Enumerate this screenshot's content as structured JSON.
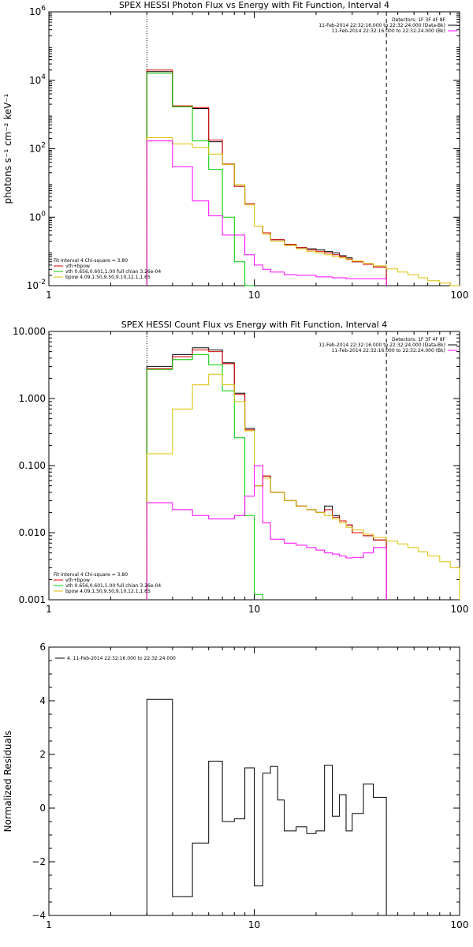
{
  "colors": {
    "total": "#000000",
    "fit": "#e00000",
    "vth": "#00cc00",
    "bpow": "#dcc000",
    "bk": "#ff00ff",
    "axes": "#000000"
  },
  "chart_data": [
    {
      "type": "line",
      "title": "SPEX HESSI Photon Flux vs Energy with Fit Function, Interval 4",
      "xlabel": "",
      "ylabel": "photons s⁻¹ cm⁻² keV⁻¹",
      "xscale": "log",
      "yscale": "log",
      "xlim": [
        1,
        100
      ],
      "ylim": [
        0.01,
        1000000
      ],
      "xticks": [
        {
          "v": 1,
          "label": "1"
        },
        {
          "v": 10,
          "label": "10"
        },
        {
          "v": 100,
          "label": "100"
        }
      ],
      "yticks": [
        {
          "v": 0.01,
          "base": "10",
          "exp": "-2"
        },
        {
          "v": 1,
          "base": "10",
          "exp": "0"
        },
        {
          "v": 100,
          "base": "10",
          "exp": "2"
        },
        {
          "v": 10000,
          "base": "10",
          "exp": "4"
        },
        {
          "v": 1000000,
          "base": "10",
          "exp": "6"
        }
      ],
      "vlines": [
        {
          "x": 3.0,
          "style": "dotted"
        },
        {
          "x": 44.0,
          "style": "dashed"
        }
      ],
      "legend_topright": [
        {
          "text": "Detectors: 1F 3F 4F 8F",
          "color": ""
        },
        {
          "text": "11-Feb-2014 22:32:16.000 to 22:32:24.000 (Data-Bk)",
          "color": "#000000"
        },
        {
          "text": "11-Feb-2014 22:32:16.000 to 22:32:24.000 (Bk)",
          "color": "#ff00ff"
        }
      ],
      "legend_bottomleft": [
        {
          "text": "Fit Interval 4   Chi-square = 3.80",
          "color": ""
        },
        {
          "text": "vth+bpow",
          "color": "#e00000"
        },
        {
          "text": "vth 0.656,0.601,1.00  full chian 3.26e-04",
          "color": "#00cc00"
        },
        {
          "text": "bpow 4.09,1.50,9.50,9.10,12.1,1.65",
          "color": "#dcc000"
        }
      ],
      "series": [
        {
          "key": "total",
          "edges": [
            3,
            4,
            5,
            6,
            7,
            8,
            9,
            10,
            11,
            12,
            14,
            16,
            18,
            20,
            22,
            24,
            26,
            28,
            30,
            34,
            38,
            44
          ],
          "values": [
            18000,
            1700,
            1500,
            160,
            35,
            8,
            2.5,
            0.55,
            0.35,
            0.22,
            0.16,
            0.13,
            0.12,
            0.11,
            0.1,
            0.09,
            0.075,
            0.065,
            0.05,
            0.042,
            0.035
          ]
        },
        {
          "key": "fit",
          "edges": [
            3,
            4,
            5,
            6,
            7,
            8,
            9,
            10,
            11,
            12,
            14,
            16,
            18,
            20,
            22,
            24,
            26,
            28,
            30,
            34,
            38,
            44
          ],
          "values": [
            20000,
            1800,
            1600,
            180,
            36,
            8,
            2.5,
            0.55,
            0.35,
            0.22,
            0.16,
            0.13,
            0.11,
            0.1,
            0.09,
            0.08,
            0.07,
            0.06,
            0.05,
            0.042,
            0.035
          ]
        },
        {
          "key": "vth",
          "edges": [
            3,
            4,
            5,
            6,
            7,
            8,
            9,
            10
          ],
          "values": [
            16000,
            1700,
            170,
            25,
            1.0,
            0.05,
            0.003
          ]
        },
        {
          "key": "bpow",
          "edges": [
            3,
            4,
            5,
            6,
            7,
            8,
            9,
            10,
            11,
            12,
            14,
            16,
            18,
            20,
            22,
            24,
            26,
            28,
            30,
            34,
            38,
            44,
            50,
            56,
            63,
            70,
            80,
            90,
            100
          ],
          "values": [
            210,
            140,
            110,
            70,
            35,
            9,
            2.3,
            0.55,
            0.32,
            0.2,
            0.15,
            0.12,
            0.1,
            0.09,
            0.08,
            0.07,
            0.065,
            0.058,
            0.052,
            0.045,
            0.038,
            0.031,
            0.025,
            0.021,
            0.017,
            0.014,
            0.012,
            0.01
          ]
        },
        {
          "key": "bk",
          "edges": [
            3,
            4,
            5,
            6,
            7,
            8,
            9,
            10,
            11,
            12,
            14,
            16,
            18,
            20,
            22,
            24,
            26,
            28,
            30,
            34,
            38,
            44
          ],
          "values": [
            170,
            30,
            3,
            1.1,
            0.3,
            0.3,
            0.08,
            0.04,
            0.03,
            0.025,
            0.021,
            0.02,
            0.02,
            0.018,
            0.018,
            0.017,
            0.017,
            0.016,
            0.016,
            0.016,
            0.016
          ]
        }
      ]
    },
    {
      "type": "line",
      "title": "SPEX HESSI Count Flux vs Energy with Fit Function, Interval 4",
      "xlabel": "",
      "ylabel": "",
      "xscale": "log",
      "yscale": "log",
      "xlim": [
        1,
        100
      ],
      "ylim": [
        0.001,
        10
      ],
      "xticks": [
        {
          "v": 1,
          "label": "1"
        },
        {
          "v": 10,
          "label": "10"
        },
        {
          "v": 100,
          "label": "100"
        }
      ],
      "yticks": [
        {
          "v": 0.001,
          "label": "0.001"
        },
        {
          "v": 0.01,
          "label": "0.010"
        },
        {
          "v": 0.1,
          "label": "0.100"
        },
        {
          "v": 1,
          "label": "1.000"
        },
        {
          "v": 10,
          "label": "10.000"
        }
      ],
      "vlines": [
        {
          "x": 3.0,
          "style": "dotted"
        },
        {
          "x": 44.0,
          "style": "dashed"
        }
      ],
      "legend_topright": [
        {
          "text": "Detectors: 1F 3F 4F 8F",
          "color": ""
        },
        {
          "text": "11-Feb-2014 22:32:16.000 to 22:32:24.000 (Data-Bk)",
          "color": "#000000"
        },
        {
          "text": "11-Feb-2014 22:32:16.000 to 22:32:24.000 (Bk)",
          "color": "#ff00ff"
        }
      ],
      "legend_bottomleft": [
        {
          "text": "Fit Interval 4   Chi-square = 3.80",
          "color": ""
        },
        {
          "text": "vth+bpow",
          "color": "#e00000"
        },
        {
          "text": "vth 0.656,0.601,1.00  full chian 3.26e-04",
          "color": "#00cc00"
        },
        {
          "text": "bpow 4.09,1.50,9.50,9.10,12.1,1.65",
          "color": "#dcc000"
        }
      ],
      "series": [
        {
          "key": "total",
          "edges": [
            3,
            4,
            5,
            6,
            7,
            8,
            9,
            10,
            11,
            12,
            14,
            16,
            18,
            20,
            22,
            24,
            26,
            28,
            30,
            34,
            38,
            44
          ],
          "values": [
            3.0,
            4.5,
            5.7,
            5.3,
            3.4,
            1.2,
            0.36,
            0.05,
            0.07,
            0.04,
            0.03,
            0.025,
            0.022,
            0.02,
            0.025,
            0.018,
            0.015,
            0.013,
            0.01,
            0.009,
            0.0078
          ]
        },
        {
          "key": "fit",
          "edges": [
            3,
            4,
            5,
            6,
            7,
            8,
            9,
            10,
            11,
            12,
            14,
            16,
            18,
            20,
            22,
            24,
            26,
            28,
            30,
            34,
            38,
            44
          ],
          "values": [
            2.8,
            4.2,
            5.3,
            5.0,
            3.3,
            1.15,
            0.34,
            0.05,
            0.07,
            0.04,
            0.03,
            0.025,
            0.022,
            0.02,
            0.022,
            0.017,
            0.015,
            0.013,
            0.01,
            0.009,
            0.0078
          ]
        },
        {
          "key": "vth",
          "edges": [
            3,
            4,
            5,
            6,
            7,
            8,
            9,
            10,
            11
          ],
          "values": [
            2.7,
            3.8,
            4.5,
            3.2,
            1.3,
            0.26,
            0.018,
            0.0012
          ]
        },
        {
          "key": "bpow",
          "edges": [
            3,
            4,
            5,
            6,
            7,
            8,
            9,
            10,
            11,
            12,
            14,
            16,
            18,
            20,
            22,
            24,
            26,
            28,
            30,
            34,
            38,
            44,
            50,
            56,
            63,
            70,
            80,
            90,
            100
          ],
          "values": [
            0.15,
            0.7,
            1.6,
            2.3,
            1.6,
            0.9,
            0.33,
            0.05,
            0.065,
            0.04,
            0.03,
            0.025,
            0.022,
            0.02,
            0.018,
            0.016,
            0.014,
            0.012,
            0.011,
            0.0095,
            0.0085,
            0.0075,
            0.0068,
            0.006,
            0.0052,
            0.0045,
            0.0037,
            0.003
          ]
        },
        {
          "key": "bk",
          "edges": [
            3,
            4,
            5,
            6,
            7,
            8,
            9,
            10,
            11,
            12,
            14,
            16,
            18,
            20,
            22,
            24,
            26,
            28,
            30,
            34,
            38,
            44
          ],
          "values": [
            0.028,
            0.022,
            0.018,
            0.016,
            0.016,
            0.018,
            0.035,
            0.1,
            0.014,
            0.008,
            0.007,
            0.0065,
            0.006,
            0.0055,
            0.005,
            0.0048,
            0.0045,
            0.0042,
            0.0043,
            0.005,
            0.006
          ]
        }
      ]
    },
    {
      "type": "line",
      "title": "",
      "xlabel": "",
      "ylabel": "Normalized Residuals",
      "xscale": "log",
      "yscale": "linear",
      "xlim": [
        1,
        100
      ],
      "ylim": [
        -4,
        6
      ],
      "xticks": [
        {
          "v": 1,
          "label": "1"
        },
        {
          "v": 10,
          "label": "10"
        },
        {
          "v": 100,
          "label": "100"
        }
      ],
      "yticks": [
        {
          "v": -4,
          "label": "−4"
        },
        {
          "v": -2,
          "label": "−2"
        },
        {
          "v": 0,
          "label": "0"
        },
        {
          "v": 2,
          "label": "2"
        },
        {
          "v": 4,
          "label": "4"
        },
        {
          "v": 6,
          "label": "6"
        }
      ],
      "vlines": [],
      "legend_topleft": [
        {
          "text": "4. 11-Feb-2014 22:32:16.000 to 22:32:24.000",
          "color": "#000000"
        }
      ],
      "series": [
        {
          "key": "total",
          "edges": [
            3,
            4,
            5,
            6,
            7,
            8,
            9,
            10,
            11,
            12,
            13,
            14,
            16,
            18,
            20,
            22,
            24,
            26,
            28,
            30,
            34,
            38,
            44
          ],
          "values": [
            4.05,
            -3.3,
            -1.3,
            1.75,
            -0.5,
            -0.4,
            1.5,
            -2.9,
            1.3,
            1.55,
            0.3,
            -0.85,
            -0.7,
            -0.95,
            -0.85,
            1.6,
            -0.3,
            0.5,
            -0.85,
            -0.2,
            0.9,
            0.4
          ]
        }
      ]
    }
  ]
}
